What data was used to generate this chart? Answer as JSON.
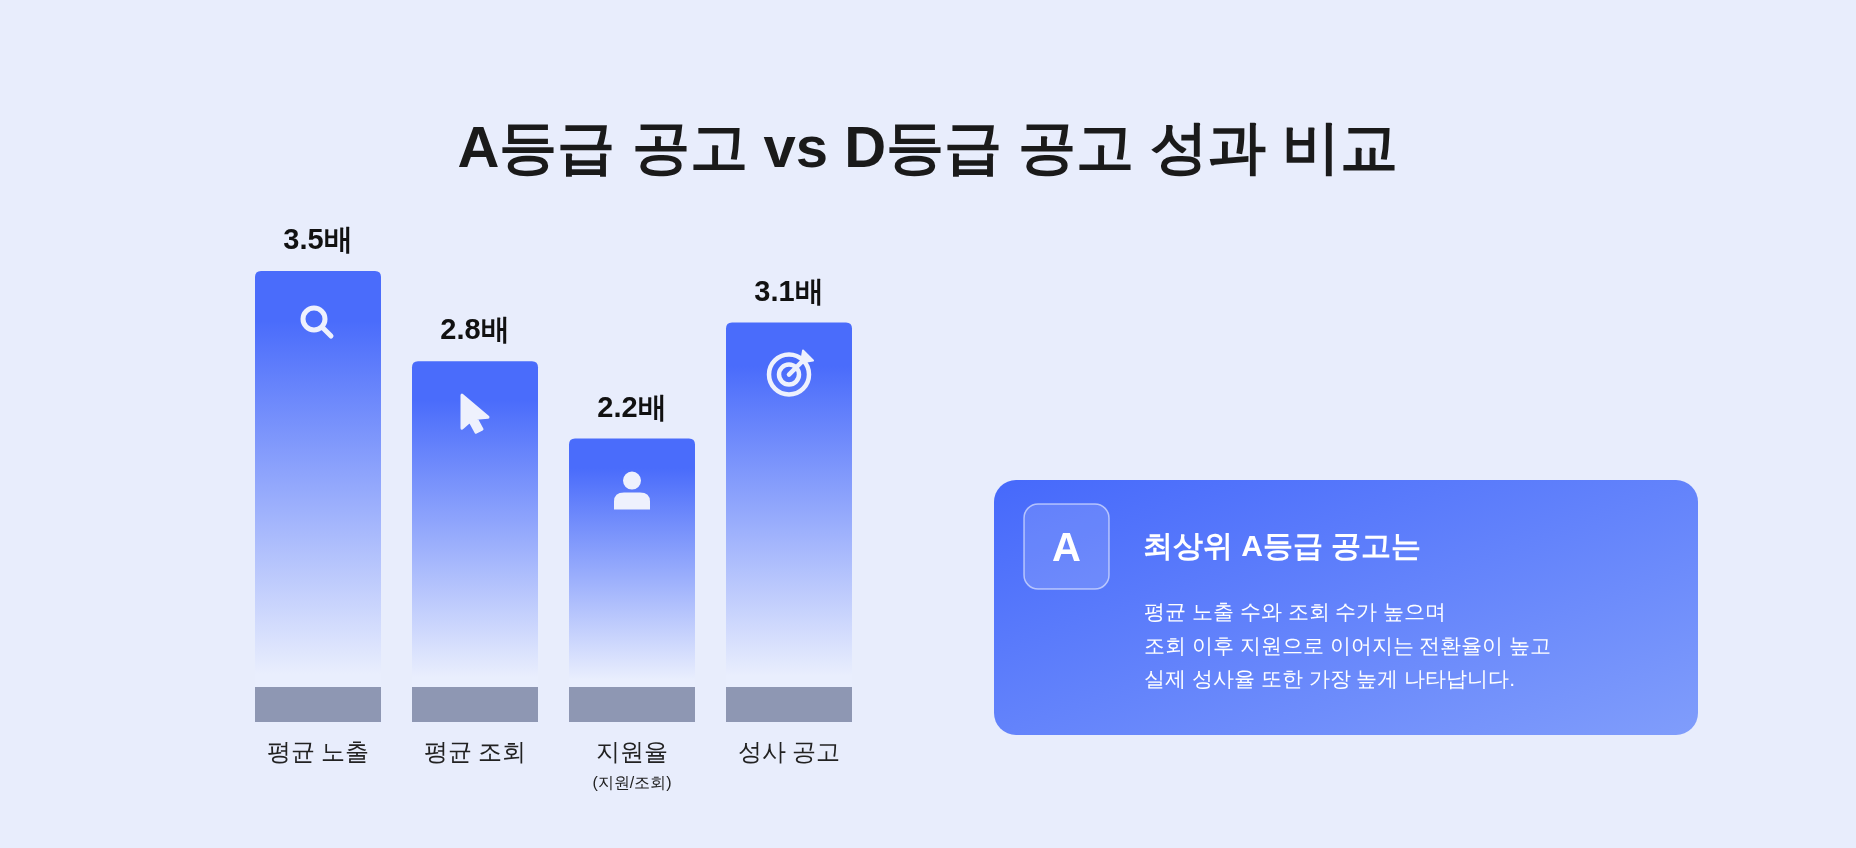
{
  "chart_data": [
    {
      "type": "bar",
      "title": "A등급 공고 vs D등급 공고 성과 비교",
      "categories": [
        "평균 노출",
        "평균 조회",
        "지원율\n(지원/조회)",
        "성사 공고"
      ],
      "values": [
        3.5,
        2.8,
        2.2,
        3.1
      ],
      "value_labels": [
        "3.5배",
        "2.8배",
        "2.2배",
        "3.1배"
      ],
      "color": "#4a6cfb",
      "tick_labels": "x"
    },
    {
      "type": "other",
      "title": "최상위 A등급 공고는",
      "annotations": [
        "A",
        "평균 노출 수와 조회 수가 높으며",
        "조회 이후 지원으로 이어지는 전환율이 높고",
        "실제 성사율 또한 가장 높게 나타납니다."
      ]
    }
  ]
}
